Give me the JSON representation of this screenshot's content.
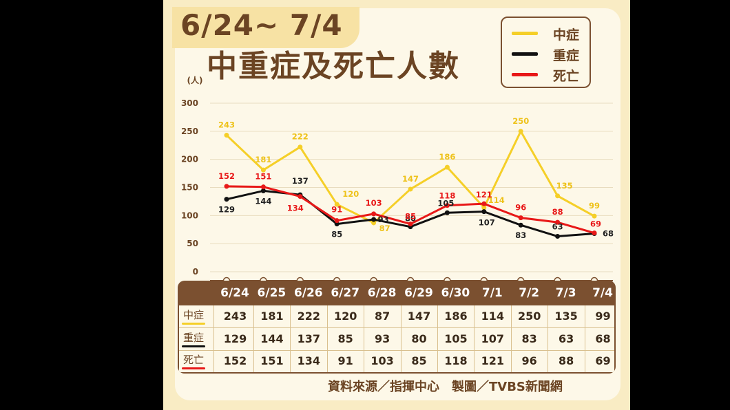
{
  "header": {
    "date_range": "6/24~ 7/4",
    "title": "中重症及死亡人數"
  },
  "legend": [
    {
      "label": "中症",
      "color": "#f5cf28"
    },
    {
      "label": "重症",
      "color": "#111111"
    },
    {
      "label": "死亡",
      "color": "#e81818"
    }
  ],
  "chart_data": {
    "type": "line",
    "ylabel": "(人)",
    "ylim": [
      0,
      300
    ],
    "yticks": [
      "0",
      "50",
      "100",
      "150",
      "200",
      "250",
      "300"
    ],
    "categories": [
      "6/24",
      "6/25",
      "6/26",
      "6/27",
      "6/28",
      "6/29",
      "6/30",
      "7/1",
      "7/2",
      "7/3",
      "7/4"
    ],
    "series": [
      {
        "name": "中症",
        "color": "#f5cf28",
        "label_color": "#eec21a",
        "values": [
          243,
          181,
          222,
          120,
          87,
          147,
          186,
          114,
          250,
          135,
          99
        ]
      },
      {
        "name": "重症",
        "color": "#111111",
        "label_color": "#222222",
        "values": [
          129,
          144,
          137,
          85,
          93,
          80,
          105,
          107,
          83,
          63,
          68
        ]
      },
      {
        "name": "死亡",
        "color": "#e81818",
        "label_color": "#e81818",
        "values": [
          152,
          151,
          134,
          91,
          103,
          85,
          118,
          121,
          96,
          88,
          69
        ]
      }
    ]
  },
  "table": {
    "rows": [
      {
        "label": "中症",
        "color": "#f5cf28",
        "values": [
          "243",
          "181",
          "222",
          "120",
          "87",
          "147",
          "186",
          "114",
          "250",
          "135",
          "99"
        ]
      },
      {
        "label": "重症",
        "color": "#111111",
        "values": [
          "129",
          "144",
          "137",
          "85",
          "93",
          "80",
          "105",
          "107",
          "83",
          "63",
          "68"
        ]
      },
      {
        "label": "死亡",
        "color": "#e81818",
        "values": [
          "152",
          "151",
          "134",
          "91",
          "103",
          "85",
          "118",
          "121",
          "96",
          "88",
          "69"
        ]
      }
    ]
  },
  "footer": {
    "source": "資料來源／指揮中心　製圖／TVBS新聞網"
  }
}
